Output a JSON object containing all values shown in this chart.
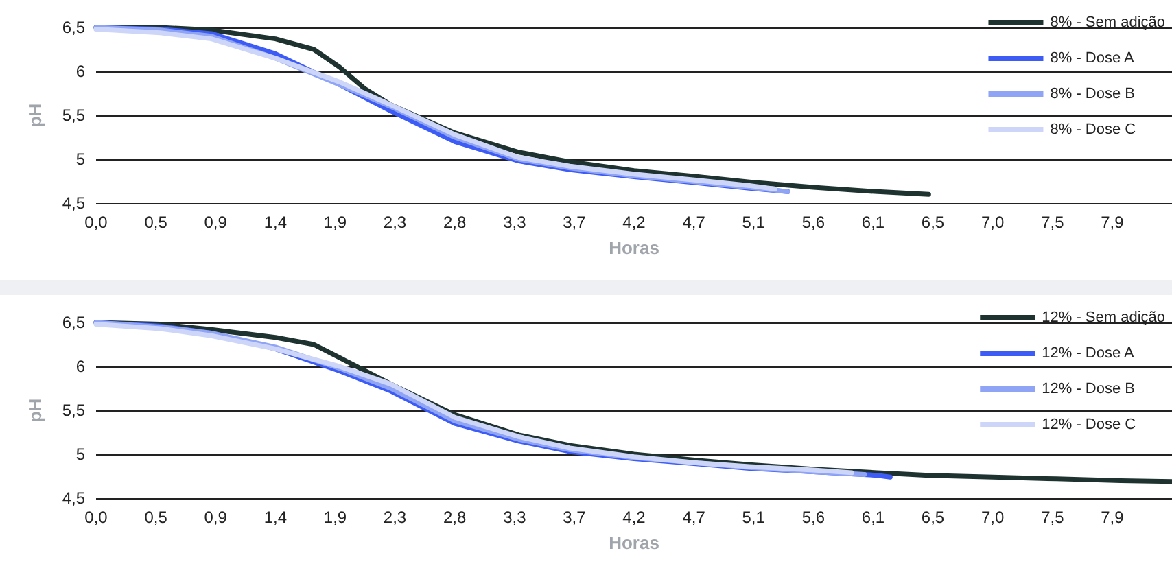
{
  "chart_data": [
    {
      "type": "line",
      "xlabel": "Horas",
      "ylabel": "pH",
      "xlim": [
        0,
        8.4
      ],
      "ylim": [
        4.5,
        6.5
      ],
      "xticks": [
        {
          "value": 0,
          "label": "0,0"
        },
        {
          "value": 0.467,
          "label": "0,5"
        },
        {
          "value": 0.933,
          "label": "0,9"
        },
        {
          "value": 1.4,
          "label": "1,4"
        },
        {
          "value": 1.867,
          "label": "1,9"
        },
        {
          "value": 2.333,
          "label": "2,3"
        },
        {
          "value": 2.8,
          "label": "2,8"
        },
        {
          "value": 3.267,
          "label": "3,3"
        },
        {
          "value": 3.733,
          "label": "3,7"
        },
        {
          "value": 4.2,
          "label": "4,2"
        },
        {
          "value": 4.667,
          "label": "4,7"
        },
        {
          "value": 5.133,
          "label": "5,1"
        },
        {
          "value": 5.6,
          "label": "5,6"
        },
        {
          "value": 6.067,
          "label": "6,1"
        },
        {
          "value": 6.533,
          "label": "6,5"
        },
        {
          "value": 7.0,
          "label": "7,0"
        },
        {
          "value": 7.467,
          "label": "7,5"
        },
        {
          "value": 7.933,
          "label": "7,9"
        }
      ],
      "yticks": [
        {
          "value": 4.5,
          "label": "4,5"
        },
        {
          "value": 5,
          "label": "5"
        },
        {
          "value": 5.5,
          "label": "5,5"
        },
        {
          "value": 6,
          "label": "6"
        },
        {
          "value": 6.5,
          "label": "6,5"
        }
      ],
      "grid": "y",
      "legend": "top right",
      "marker": "none",
      "line_style": "solid",
      "series": [
        {
          "name": "8% - Sem adição",
          "color": "#1e3330",
          "x": [
            0,
            0.5,
            0.9,
            1.4,
            1.7,
            1.9,
            2.1,
            2.3,
            2.8,
            3.3,
            3.7,
            4.2,
            4.7,
            5.1,
            5.6,
            6.1,
            6.5
          ],
          "values": [
            6.5,
            6.5,
            6.47,
            6.37,
            6.25,
            6.05,
            5.8,
            5.62,
            5.3,
            5.08,
            4.97,
            4.87,
            4.8,
            4.74,
            4.68,
            4.63,
            4.6
          ]
        },
        {
          "name": "8% - Dose A",
          "color": "#3d5cf5",
          "x": [
            0,
            0.5,
            0.9,
            1.4,
            1.9,
            2.3,
            2.8,
            3.3,
            3.7,
            4.2,
            4.7,
            5.1,
            5.4
          ],
          "values": [
            6.5,
            6.48,
            6.43,
            6.2,
            5.85,
            5.55,
            5.2,
            4.98,
            4.88,
            4.8,
            4.73,
            4.67,
            4.63
          ]
        },
        {
          "name": "8% - Dose B",
          "color": "#8fa4f5",
          "x": [
            0,
            0.5,
            0.9,
            1.4,
            1.9,
            2.3,
            2.8,
            3.3,
            3.7,
            4.2,
            4.7,
            5.1,
            5.4
          ],
          "values": [
            6.5,
            6.47,
            6.4,
            6.15,
            5.85,
            5.6,
            5.25,
            5.0,
            4.9,
            4.81,
            4.74,
            4.68,
            4.63
          ]
        },
        {
          "name": "8% - Dose C",
          "color": "#cdd6f8",
          "x": [
            0,
            0.5,
            0.9,
            1.4,
            1.9,
            2.3,
            2.8,
            3.3,
            3.7,
            4.2,
            4.7,
            5.1,
            5.3
          ],
          "values": [
            6.48,
            6.44,
            6.37,
            6.15,
            5.88,
            5.62,
            5.28,
            5.02,
            4.92,
            4.83,
            4.76,
            4.7,
            4.66
          ]
        }
      ]
    },
    {
      "type": "line",
      "xlabel": "Horas",
      "ylabel": "pH",
      "xlim": [
        0,
        8.4
      ],
      "ylim": [
        4.5,
        6.5
      ],
      "xticks": [
        {
          "value": 0,
          "label": "0,0"
        },
        {
          "value": 0.467,
          "label": "0,5"
        },
        {
          "value": 0.933,
          "label": "0,9"
        },
        {
          "value": 1.4,
          "label": "1,4"
        },
        {
          "value": 1.867,
          "label": "1,9"
        },
        {
          "value": 2.333,
          "label": "2,3"
        },
        {
          "value": 2.8,
          "label": "2,8"
        },
        {
          "value": 3.267,
          "label": "3,3"
        },
        {
          "value": 3.733,
          "label": "3,7"
        },
        {
          "value": 4.2,
          "label": "4,2"
        },
        {
          "value": 4.667,
          "label": "4,7"
        },
        {
          "value": 5.133,
          "label": "5,1"
        },
        {
          "value": 5.6,
          "label": "5,6"
        },
        {
          "value": 6.067,
          "label": "6,1"
        },
        {
          "value": 6.533,
          "label": "6,5"
        },
        {
          "value": 7.0,
          "label": "7,0"
        },
        {
          "value": 7.467,
          "label": "7,5"
        },
        {
          "value": 7.933,
          "label": "7,9"
        }
      ],
      "yticks": [
        {
          "value": 4.5,
          "label": "4,5"
        },
        {
          "value": 5,
          "label": "5"
        },
        {
          "value": 5.5,
          "label": "5,5"
        },
        {
          "value": 6,
          "label": "6"
        },
        {
          "value": 6.5,
          "label": "6,5"
        }
      ],
      "grid": "y",
      "legend": "top right",
      "marker": "none",
      "line_style": "solid",
      "series": [
        {
          "name": "12% - Sem adição",
          "color": "#1e3330",
          "x": [
            0,
            0.5,
            0.9,
            1.4,
            1.7,
            1.9,
            2.3,
            2.8,
            3.3,
            3.7,
            4.2,
            4.7,
            5.1,
            5.6,
            6.1,
            6.5,
            7.0,
            7.5,
            8.0,
            8.4
          ],
          "values": [
            6.5,
            6.48,
            6.42,
            6.33,
            6.25,
            6.1,
            5.8,
            5.45,
            5.22,
            5.1,
            5.0,
            4.93,
            4.88,
            4.83,
            4.79,
            4.76,
            4.74,
            4.72,
            4.7,
            4.69
          ]
        },
        {
          "name": "12% - Dose A",
          "color": "#3d5cf5",
          "x": [
            0,
            0.5,
            0.9,
            1.4,
            1.9,
            2.3,
            2.8,
            3.3,
            3.7,
            4.2,
            4.7,
            5.1,
            5.6,
            6.1,
            6.2
          ],
          "values": [
            6.5,
            6.46,
            6.38,
            6.2,
            5.95,
            5.72,
            5.35,
            5.15,
            5.03,
            4.95,
            4.89,
            4.84,
            4.8,
            4.76,
            4.74
          ]
        },
        {
          "name": "12% - Dose B",
          "color": "#8fa4f5",
          "x": [
            0,
            0.5,
            0.9,
            1.4,
            1.9,
            2.3,
            2.8,
            3.3,
            3.7,
            4.2,
            4.7,
            5.1,
            5.6,
            6.0
          ],
          "values": [
            6.5,
            6.45,
            6.38,
            6.22,
            5.98,
            5.75,
            5.38,
            5.17,
            5.05,
            4.96,
            4.9,
            4.85,
            4.8,
            4.77
          ]
        },
        {
          "name": "12% - Dose C",
          "color": "#cdd6f8",
          "x": [
            0,
            0.5,
            0.9,
            1.4,
            1.9,
            2.3,
            2.8,
            3.3,
            3.7,
            4.2,
            4.7,
            5.1,
            5.6,
            5.9
          ],
          "values": [
            6.48,
            6.43,
            6.35,
            6.2,
            6.0,
            5.8,
            5.42,
            5.2,
            5.07,
            4.97,
            4.9,
            4.86,
            4.82,
            4.79
          ]
        }
      ]
    }
  ]
}
